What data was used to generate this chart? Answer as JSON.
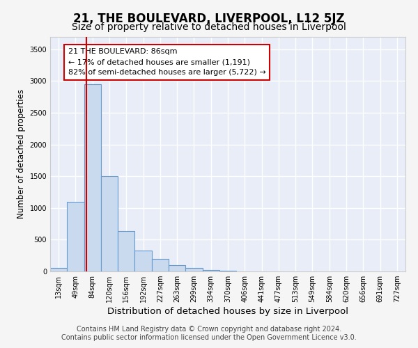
{
  "title": "21, THE BOULEVARD, LIVERPOOL, L12 5JZ",
  "subtitle": "Size of property relative to detached houses in Liverpool",
  "xlabel": "Distribution of detached houses by size in Liverpool",
  "ylabel": "Number of detached properties",
  "footer_line1": "Contains HM Land Registry data © Crown copyright and database right 2024.",
  "footer_line2": "Contains public sector information licensed under the Open Government Licence v3.0.",
  "bar_labels": [
    "13sqm",
    "49sqm",
    "84sqm",
    "120sqm",
    "156sqm",
    "192sqm",
    "227sqm",
    "263sqm",
    "299sqm",
    "334sqm",
    "370sqm",
    "406sqm",
    "441sqm",
    "477sqm",
    "513sqm",
    "549sqm",
    "584sqm",
    "620sqm",
    "656sqm",
    "691sqm",
    "727sqm"
  ],
  "bar_values": [
    55,
    1100,
    2950,
    1500,
    640,
    330,
    200,
    100,
    55,
    20,
    10,
    5,
    5,
    5,
    3,
    3,
    2,
    2,
    2,
    2,
    2
  ],
  "bar_color": "#c9d9ee",
  "bar_edge_color": "#6699cc",
  "bar_linewidth": 0.8,
  "vline_x_idx": 2,
  "vline_color": "#cc0000",
  "annotation_text": "21 THE BOULEVARD: 86sqm\n← 17% of detached houses are smaller (1,191)\n82% of semi-detached houses are larger (5,722) →",
  "annotation_box_color": "#ffffff",
  "annotation_box_edgecolor": "#cc0000",
  "ylim": [
    0,
    3700
  ],
  "yticks": [
    0,
    500,
    1000,
    1500,
    2000,
    2500,
    3000,
    3500
  ],
  "plot_bg_color": "#e8edf8",
  "fig_bg_color": "#f5f5f5",
  "grid_color": "#ffffff",
  "title_fontsize": 12,
  "subtitle_fontsize": 10,
  "xlabel_fontsize": 9.5,
  "ylabel_fontsize": 8.5,
  "tick_fontsize": 7,
  "annotation_fontsize": 8,
  "footer_fontsize": 7
}
